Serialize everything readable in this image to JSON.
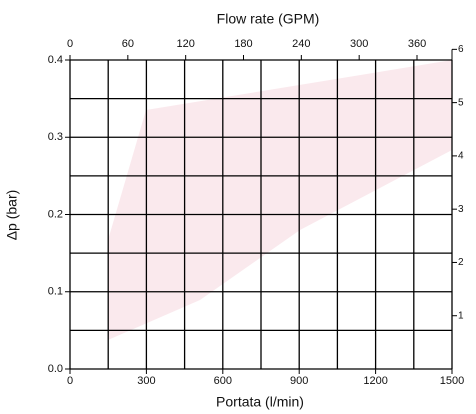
{
  "chart_data": {
    "type": "line",
    "title": "Flow rate (GPM)",
    "xlabel": "Portata (l/min)",
    "ylabel": "Δp (bar)",
    "xlim": [
      0,
      1500
    ],
    "xticks": [
      0,
      300,
      600,
      900,
      1200,
      1500
    ],
    "ylim": [
      0,
      0.4
    ],
    "yticks": [
      {
        "value": 0,
        "label": "0.0"
      },
      0.1,
      0.2,
      0.3,
      0.4
    ],
    "x2lim": [
      0,
      396.3
    ],
    "x2ticks": [
      0,
      60,
      120,
      180,
      240,
      300,
      360
    ],
    "y2lim": [
      0,
      5.8
    ],
    "y2ticks": [
      1,
      2,
      3,
      4,
      5,
      6
    ],
    "grid": true,
    "xgrid": [
      0,
      150,
      300,
      450,
      600,
      750,
      900,
      1050,
      1200,
      1350,
      1500
    ],
    "ygrid": [
      0,
      0.05,
      0.1,
      0.15,
      0.2,
      0.25,
      0.3,
      0.35,
      0.4
    ]
  }
}
